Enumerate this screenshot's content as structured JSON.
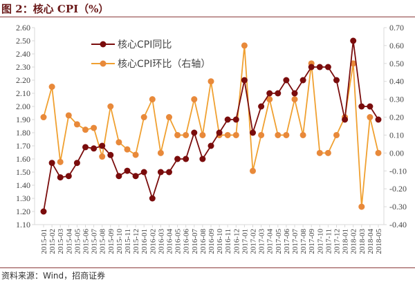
{
  "title": "图 2：核心 CPI（%）",
  "source": "资料来源：Wind，招商证券",
  "colors": {
    "yoy": "#7a0c0c",
    "mom": "#f0a030",
    "mom_marker": "#e8893a",
    "axis": "#d9d9d9"
  },
  "chart_data": {
    "type": "line",
    "title": "核心 CPI（%）",
    "legend_position": "top-center",
    "grid": false,
    "categories": [
      "2015-01",
      "2015-02",
      "2015-03",
      "2015-04",
      "2015-05",
      "2015-06",
      "2015-07",
      "2015-08",
      "2015-09",
      "2015-10",
      "2015-11",
      "2015-12",
      "2016-01",
      "2016-02",
      "2016-03",
      "2016-04",
      "2016-05",
      "2016-06",
      "2016-07",
      "2016-08",
      "2016-09",
      "2016-10",
      "2016-11",
      "2016-12",
      "2017-01",
      "2017-02",
      "2017-03",
      "2017-04",
      "2017-05",
      "2017-06",
      "2017-07",
      "2017-08",
      "2017-09",
      "2017-10",
      "2017-11",
      "2017-12",
      "2018-01",
      "2018-02",
      "2018-03",
      "2018-04",
      "2018-05"
    ],
    "left_axis": {
      "ylim": [
        1.1,
        2.6
      ],
      "ticks": [
        "1.10",
        "1.20",
        "1.30",
        "1.40",
        "1.50",
        "1.60",
        "1.70",
        "1.80",
        "1.90",
        "2.00",
        "2.10",
        "2.20",
        "2.30",
        "2.40",
        "2.50",
        "2.60"
      ]
    },
    "right_axis": {
      "ylim": [
        -0.4,
        0.7
      ],
      "ticks": [
        "-0.40",
        "-0.30",
        "-0.20",
        "-0.10",
        "0.00",
        "0.10",
        "0.20",
        "0.30",
        "0.40",
        "0.50",
        "0.60",
        "0.70"
      ]
    },
    "series": [
      {
        "name": "核心CPI同比",
        "axis": "left",
        "values": [
          1.2,
          1.57,
          1.46,
          1.47,
          1.57,
          1.69,
          1.68,
          1.7,
          1.63,
          1.47,
          1.51,
          1.47,
          1.5,
          1.3,
          1.5,
          1.5,
          1.6,
          1.6,
          1.8,
          1.6,
          1.7,
          1.8,
          1.9,
          1.9,
          2.2,
          1.8,
          2.0,
          2.1,
          2.1,
          2.2,
          2.1,
          2.2,
          2.3,
          2.3,
          2.3,
          2.2,
          1.9,
          2.5,
          2.0,
          2.0,
          1.9
        ]
      },
      {
        "name": "核心CPI环比（右轴）",
        "axis": "right",
        "values": [
          0.2,
          0.37,
          -0.05,
          0.21,
          0.16,
          0.13,
          0.14,
          -0.02,
          0.26,
          0.06,
          0.02,
          -0.01,
          0.2,
          0.3,
          0.0,
          0.2,
          0.1,
          0.1,
          0.3,
          0.1,
          0.4,
          0.1,
          0.1,
          0.1,
          0.6,
          -0.1,
          0.1,
          0.3,
          0.1,
          0.1,
          0.3,
          0.1,
          0.5,
          0.0,
          0.0,
          0.1,
          0.2,
          0.5,
          -0.3,
          0.2,
          0.0
        ]
      }
    ]
  }
}
